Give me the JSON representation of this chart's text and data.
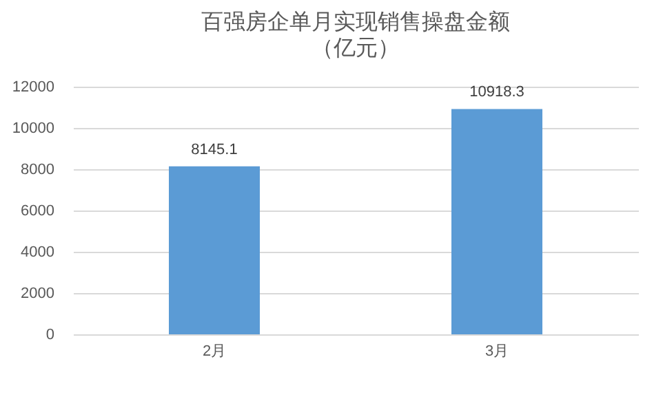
{
  "chart_data": {
    "type": "bar",
    "title": "百强房企单月实现销售操盘金额",
    "subtitle": "（亿元）",
    "categories": [
      "2月",
      "3月"
    ],
    "values": [
      8145.1,
      10918.3
    ],
    "color": "#5b9bd5",
    "ylim": [
      0,
      12000
    ],
    "yticks": [
      0,
      2000,
      4000,
      6000,
      8000,
      10000,
      12000
    ],
    "grid": "y",
    "data_labels": true
  }
}
